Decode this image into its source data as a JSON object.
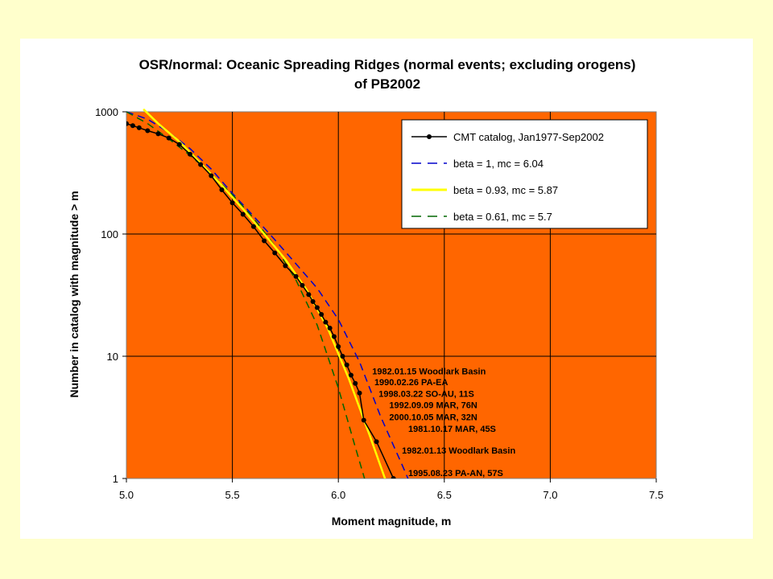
{
  "chart_data": {
    "type": "line",
    "title_line1": "OSR/normal: Oceanic Spreading Ridges (normal events; excluding orogens)",
    "title_line2": "of PB2002",
    "xlabel": "Moment magnitude, m",
    "ylabel": "Number in catalog with magnitude > m",
    "xlim": [
      5.0,
      7.5
    ],
    "ylim": [
      1,
      1000
    ],
    "yscale": "log",
    "x_ticks": [
      "5.0",
      "5.5",
      "6.0",
      "6.5",
      "7.0",
      "7.5"
    ],
    "y_ticks": [
      "1",
      "10",
      "100",
      "1000"
    ],
    "grid": true,
    "plot_background": "#FF6600",
    "legend_position": "top-right",
    "series": [
      {
        "name": "CMT catalog, Jan1977-Sep2002",
        "color": "#000000",
        "style": "line-markers",
        "x": [
          5.0,
          5.03,
          5.06,
          5.1,
          5.15,
          5.2,
          5.25,
          5.3,
          5.35,
          5.4,
          5.45,
          5.5,
          5.55,
          5.6,
          5.65,
          5.7,
          5.75,
          5.8,
          5.83,
          5.86,
          5.88,
          5.9,
          5.92,
          5.94,
          5.96,
          5.98,
          6.0,
          6.02,
          6.04,
          6.06,
          6.08,
          6.1,
          6.12,
          6.18,
          6.26
        ],
        "y": [
          800,
          770,
          740,
          700,
          660,
          610,
          540,
          450,
          370,
          300,
          230,
          180,
          145,
          115,
          88,
          70,
          55,
          45,
          38,
          32,
          28,
          25,
          22,
          19,
          17,
          14.5,
          12,
          10,
          8.5,
          7,
          6,
          5,
          3,
          2,
          1
        ]
      },
      {
        "name": "beta = 1, mc = 6.04",
        "color": "#0000CC",
        "style": "dashed",
        "x": [
          5.0,
          5.1,
          5.2,
          5.3,
          5.4,
          5.5,
          5.6,
          5.7,
          5.8,
          5.9,
          6.0,
          6.1,
          6.2,
          6.3,
          6.34
        ],
        "y": [
          1000,
          870,
          680,
          500,
          340,
          215,
          140,
          90,
          57,
          36,
          20,
          9,
          3.2,
          1.3,
          0.9
        ]
      },
      {
        "name": "beta = 0.93, mc = 5.87",
        "color": "#FFFF00",
        "style": "solid",
        "x": [
          5.08,
          5.15,
          5.25,
          5.35,
          5.45,
          5.55,
          5.65,
          5.75,
          5.85,
          5.95,
          6.05,
          6.15,
          6.22,
          6.26
        ],
        "y": [
          1050,
          800,
          570,
          380,
          250,
          160,
          100,
          62,
          35,
          17,
          6.5,
          2.2,
          1,
          0.7
        ]
      },
      {
        "name": "beta = 0.61, mc = 5.7",
        "color": "#006600",
        "style": "dashed",
        "x": [
          5.0,
          5.1,
          5.2,
          5.3,
          5.4,
          5.5,
          5.6,
          5.7,
          5.8,
          5.9,
          6.0,
          6.08,
          6.14
        ],
        "y": [
          1000,
          800,
          600,
          440,
          310,
          210,
          135,
          80,
          42,
          18,
          5.5,
          1.8,
          0.8
        ]
      }
    ],
    "annotations": [
      {
        "text": "1982.01.15 Woodlark Basin",
        "x": 6.16,
        "y": 7.1
      },
      {
        "text": "1990.02.26 PA-EA",
        "x": 6.17,
        "y": 5.8
      },
      {
        "text": "1998.03.22 SO-AU, 11S",
        "x": 6.19,
        "y": 4.65
      },
      {
        "text": "1992.09.09 MAR, 76N",
        "x": 6.24,
        "y": 3.75
      },
      {
        "text": "2000.10.05 MAR, 32N",
        "x": 6.24,
        "y": 3.0
      },
      {
        "text": "1981.10.17 MAR, 45S",
        "x": 6.33,
        "y": 2.4
      },
      {
        "text": "1982.01.13 Woodlark Basin",
        "x": 6.3,
        "y": 1.6
      },
      {
        "text": "1995.08.23 PA-AN, 57S",
        "x": 6.33,
        "y": 1.05
      }
    ]
  }
}
